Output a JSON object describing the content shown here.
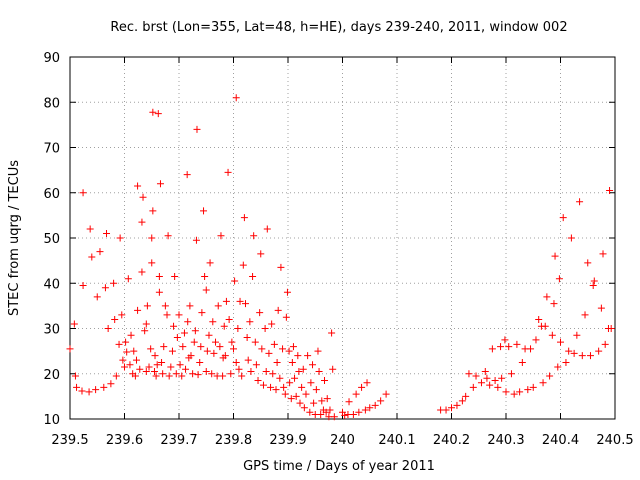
{
  "chart_data": {
    "type": "scatter",
    "title": "Rec. brst (Lon=355, Lat=48, h=HE), days 239-240, 2011, window 002",
    "xlabel": "GPS time / Days of year 2011",
    "ylabel": "STEC from uqrg / TECUs",
    "xlim": [
      239.5,
      240.5
    ],
    "ylim": [
      10,
      90
    ],
    "xticks": [
      "239.5",
      "239.6",
      "239.7",
      "239.8",
      "239.9",
      "240",
      "240.1",
      "240.2",
      "240.3",
      "240.4",
      "240.5"
    ],
    "yticks": [
      "10",
      "20",
      "30",
      "40",
      "50",
      "60",
      "70",
      "80",
      "90"
    ],
    "grid": true,
    "marker": "+",
    "color": "#ff0000",
    "points": [
      [
        239.5,
        25.5
      ],
      [
        239.508,
        31.0
      ],
      [
        239.51,
        19.5
      ],
      [
        239.512,
        17.0
      ],
      [
        239.522,
        16.2
      ],
      [
        239.524,
        39.5
      ],
      [
        239.524,
        60.0
      ],
      [
        239.535,
        16.0
      ],
      [
        239.537,
        52.0
      ],
      [
        239.54,
        45.8
      ],
      [
        239.547,
        16.5
      ],
      [
        239.55,
        37.0
      ],
      [
        239.555,
        47.0
      ],
      [
        239.562,
        17.0
      ],
      [
        239.565,
        39.0
      ],
      [
        239.567,
        51.0
      ],
      [
        239.57,
        30.0
      ],
      [
        239.575,
        17.8
      ],
      [
        239.58,
        40.0
      ],
      [
        239.582,
        32.0
      ],
      [
        239.585,
        19.5
      ],
      [
        239.59,
        26.5
      ],
      [
        239.592,
        50.0
      ],
      [
        239.595,
        33.0
      ],
      [
        239.597,
        23.0
      ],
      [
        239.6,
        21.5
      ],
      [
        239.602,
        27.0
      ],
      [
        239.604,
        24.8
      ],
      [
        239.607,
        41.0
      ],
      [
        239.61,
        22.0
      ],
      [
        239.612,
        28.5
      ],
      [
        239.615,
        20.0
      ],
      [
        239.617,
        25.0
      ],
      [
        239.62,
        19.5
      ],
      [
        239.622,
        23.0
      ],
      [
        239.624,
        34.0
      ],
      [
        239.624,
        61.5
      ],
      [
        239.628,
        21.0
      ],
      [
        239.632,
        42.5
      ],
      [
        239.632,
        53.5
      ],
      [
        239.634,
        59.0
      ],
      [
        239.637,
        29.5
      ],
      [
        239.64,
        20.5
      ],
      [
        239.64,
        31.0
      ],
      [
        239.642,
        35.0
      ],
      [
        239.645,
        21.5
      ],
      [
        239.648,
        25.5
      ],
      [
        239.65,
        44.5
      ],
      [
        239.65,
        50.0
      ],
      [
        239.652,
        56.0
      ],
      [
        239.652,
        77.8
      ],
      [
        239.655,
        20.5
      ],
      [
        239.656,
        24.0
      ],
      [
        239.658,
        19.5
      ],
      [
        239.66,
        22.0
      ],
      [
        239.662,
        77.5
      ],
      [
        239.664,
        38.0
      ],
      [
        239.664,
        41.5
      ],
      [
        239.666,
        62.0
      ],
      [
        239.668,
        22.5
      ],
      [
        239.67,
        20.0
      ],
      [
        239.672,
        26.0
      ],
      [
        239.675,
        35.0
      ],
      [
        239.678,
        33.0
      ],
      [
        239.68,
        50.5
      ],
      [
        239.682,
        19.5
      ],
      [
        239.685,
        21.5
      ],
      [
        239.688,
        25.0
      ],
      [
        239.69,
        30.5
      ],
      [
        239.692,
        41.5
      ],
      [
        239.695,
        20.0
      ],
      [
        239.697,
        28.0
      ],
      [
        239.7,
        33.0
      ],
      [
        239.702,
        22.0
      ],
      [
        239.705,
        19.5
      ],
      [
        239.707,
        26.0
      ],
      [
        239.71,
        29.0
      ],
      [
        239.712,
        21.0
      ],
      [
        239.715,
        64.0
      ],
      [
        239.716,
        31.5
      ],
      [
        239.718,
        23.5
      ],
      [
        239.72,
        35.0
      ],
      [
        239.722,
        24.0
      ],
      [
        239.725,
        20.0
      ],
      [
        239.728,
        27.0
      ],
      [
        239.73,
        29.5
      ],
      [
        239.732,
        49.5
      ],
      [
        239.733,
        74.0
      ],
      [
        239.735,
        19.8
      ],
      [
        239.738,
        22.5
      ],
      [
        239.74,
        26.0
      ],
      [
        239.742,
        33.5
      ],
      [
        239.745,
        56.0
      ],
      [
        239.747,
        41.5
      ],
      [
        239.75,
        20.5
      ],
      [
        239.75,
        38.5
      ],
      [
        239.752,
        25.0
      ],
      [
        239.755,
        28.5
      ],
      [
        239.757,
        44.5
      ],
      [
        239.76,
        20.0
      ],
      [
        239.762,
        31.5
      ],
      [
        239.764,
        24.5
      ],
      [
        239.767,
        27.0
      ],
      [
        239.77,
        19.5
      ],
      [
        239.772,
        35.0
      ],
      [
        239.775,
        26.0
      ],
      [
        239.777,
        50.5
      ],
      [
        239.78,
        19.5
      ],
      [
        239.781,
        23.5
      ],
      [
        239.783,
        30.5
      ],
      [
        239.785,
        24.0
      ],
      [
        239.787,
        36.0
      ],
      [
        239.79,
        64.5
      ],
      [
        239.792,
        32.0
      ],
      [
        239.795,
        20.0
      ],
      [
        239.797,
        27.0
      ],
      [
        239.8,
        25.5
      ],
      [
        239.802,
        40.5
      ],
      [
        239.805,
        81.0
      ],
      [
        239.805,
        22.5
      ],
      [
        239.808,
        30.0
      ],
      [
        239.81,
        21.0
      ],
      [
        239.812,
        36.0
      ],
      [
        239.815,
        19.5
      ],
      [
        239.818,
        44.0
      ],
      [
        239.82,
        54.5
      ],
      [
        239.822,
        35.5
      ],
      [
        239.825,
        28.0
      ],
      [
        239.827,
        23.0
      ],
      [
        239.83,
        31.5
      ],
      [
        239.832,
        20.5
      ],
      [
        239.835,
        41.5
      ],
      [
        239.837,
        50.5
      ],
      [
        239.84,
        27.0
      ],
      [
        239.842,
        22.0
      ],
      [
        239.845,
        18.5
      ],
      [
        239.848,
        33.5
      ],
      [
        239.85,
        46.5
      ],
      [
        239.852,
        25.5
      ],
      [
        239.855,
        17.5
      ],
      [
        239.858,
        30.0
      ],
      [
        239.86,
        20.5
      ],
      [
        239.862,
        52.0
      ],
      [
        239.865,
        24.5
      ],
      [
        239.868,
        17.0
      ],
      [
        239.87,
        31.0
      ],
      [
        239.872,
        20.0
      ],
      [
        239.875,
        26.5
      ],
      [
        239.878,
        16.5
      ],
      [
        239.88,
        22.5
      ],
      [
        239.882,
        34.0
      ],
      [
        239.885,
        19.0
      ],
      [
        239.887,
        43.5
      ],
      [
        239.89,
        25.5
      ],
      [
        239.892,
        17.0
      ],
      [
        239.895,
        15.5
      ],
      [
        239.897,
        32.5
      ],
      [
        239.899,
        38.0
      ],
      [
        239.902,
        25.0
      ],
      [
        239.903,
        18.0
      ],
      [
        239.906,
        14.5
      ],
      [
        239.908,
        22.5
      ],
      [
        239.91,
        26.0
      ],
      [
        239.912,
        19.0
      ],
      [
        239.915,
        15.0
      ],
      [
        239.918,
        24.0
      ],
      [
        239.92,
        20.5
      ],
      [
        239.922,
        13.5
      ],
      [
        239.925,
        17.0
      ],
      [
        239.928,
        21.0
      ],
      [
        239.93,
        12.5
      ],
      [
        239.933,
        15.5
      ],
      [
        239.936,
        24.0
      ],
      [
        239.94,
        11.5
      ],
      [
        239.942,
        18.0
      ],
      [
        239.945,
        22.0
      ],
      [
        239.947,
        13.5
      ],
      [
        239.95,
        11.0
      ],
      [
        239.952,
        16.5
      ],
      [
        239.955,
        25.0
      ],
      [
        239.957,
        20.5
      ],
      [
        239.96,
        11.0
      ],
      [
        239.962,
        14.0
      ],
      [
        239.965,
        12.0
      ],
      [
        239.967,
        18.5
      ],
      [
        239.97,
        11.5
      ],
      [
        239.972,
        14.5
      ],
      [
        239.975,
        10.5
      ],
      [
        239.977,
        12.0
      ],
      [
        239.98,
        29.0
      ],
      [
        239.982,
        21.0
      ],
      [
        239.985,
        10.5
      ],
      [
        240.0,
        11.5
      ],
      [
        240.004,
        10.8
      ],
      [
        240.01,
        11.0
      ],
      [
        240.012,
        13.8
      ],
      [
        240.02,
        11.0
      ],
      [
        240.025,
        15.5
      ],
      [
        240.03,
        11.5
      ],
      [
        240.035,
        17.0
      ],
      [
        240.042,
        12.0
      ],
      [
        240.045,
        18.0
      ],
      [
        240.05,
        12.5
      ],
      [
        240.06,
        13.0
      ],
      [
        240.07,
        14.0
      ],
      [
        240.08,
        15.5
      ],
      [
        240.18,
        12.0
      ],
      [
        240.19,
        12.0
      ],
      [
        240.2,
        12.5
      ],
      [
        240.21,
        13.0
      ],
      [
        240.22,
        14.0
      ],
      [
        240.226,
        15.0
      ],
      [
        240.232,
        20.0
      ],
      [
        240.24,
        17.0
      ],
      [
        240.245,
        19.5
      ],
      [
        240.255,
        18.0
      ],
      [
        240.262,
        20.5
      ],
      [
        240.265,
        19.0
      ],
      [
        240.27,
        17.5
      ],
      [
        240.275,
        25.5
      ],
      [
        240.28,
        18.5
      ],
      [
        240.285,
        17.0
      ],
      [
        240.29,
        26.0
      ],
      [
        240.292,
        19.0
      ],
      [
        240.298,
        27.5
      ],
      [
        240.3,
        16.0
      ],
      [
        240.305,
        26.0
      ],
      [
        240.31,
        20.0
      ],
      [
        240.315,
        15.5
      ],
      [
        240.32,
        26.5
      ],
      [
        240.325,
        16.0
      ],
      [
        240.33,
        22.5
      ],
      [
        240.335,
        25.5
      ],
      [
        240.34,
        16.5
      ],
      [
        240.345,
        25.5
      ],
      [
        240.35,
        17.0
      ],
      [
        240.355,
        27.5
      ],
      [
        240.36,
        32.0
      ],
      [
        240.365,
        30.5
      ],
      [
        240.368,
        18.0
      ],
      [
        240.372,
        30.5
      ],
      [
        240.375,
        37.0
      ],
      [
        240.38,
        19.5
      ],
      [
        240.385,
        28.5
      ],
      [
        240.388,
        35.5
      ],
      [
        240.39,
        46.0
      ],
      [
        240.395,
        21.5
      ],
      [
        240.398,
        41.0
      ],
      [
        240.4,
        27.0
      ],
      [
        240.405,
        54.5
      ],
      [
        240.41,
        22.5
      ],
      [
        240.415,
        25.0
      ],
      [
        240.42,
        50.0
      ],
      [
        240.425,
        24.5
      ],
      [
        240.43,
        28.5
      ],
      [
        240.435,
        58.0
      ],
      [
        240.44,
        24.0
      ],
      [
        240.445,
        33.0
      ],
      [
        240.45,
        44.5
      ],
      [
        240.455,
        24.0
      ],
      [
        240.46,
        39.5
      ],
      [
        240.462,
        40.5
      ],
      [
        240.47,
        25.0
      ],
      [
        240.475,
        34.5
      ],
      [
        240.478,
        46.5
      ],
      [
        240.482,
        26.5
      ],
      [
        240.488,
        30.0
      ],
      [
        240.49,
        60.5
      ],
      [
        240.493,
        30.0
      ]
    ]
  }
}
